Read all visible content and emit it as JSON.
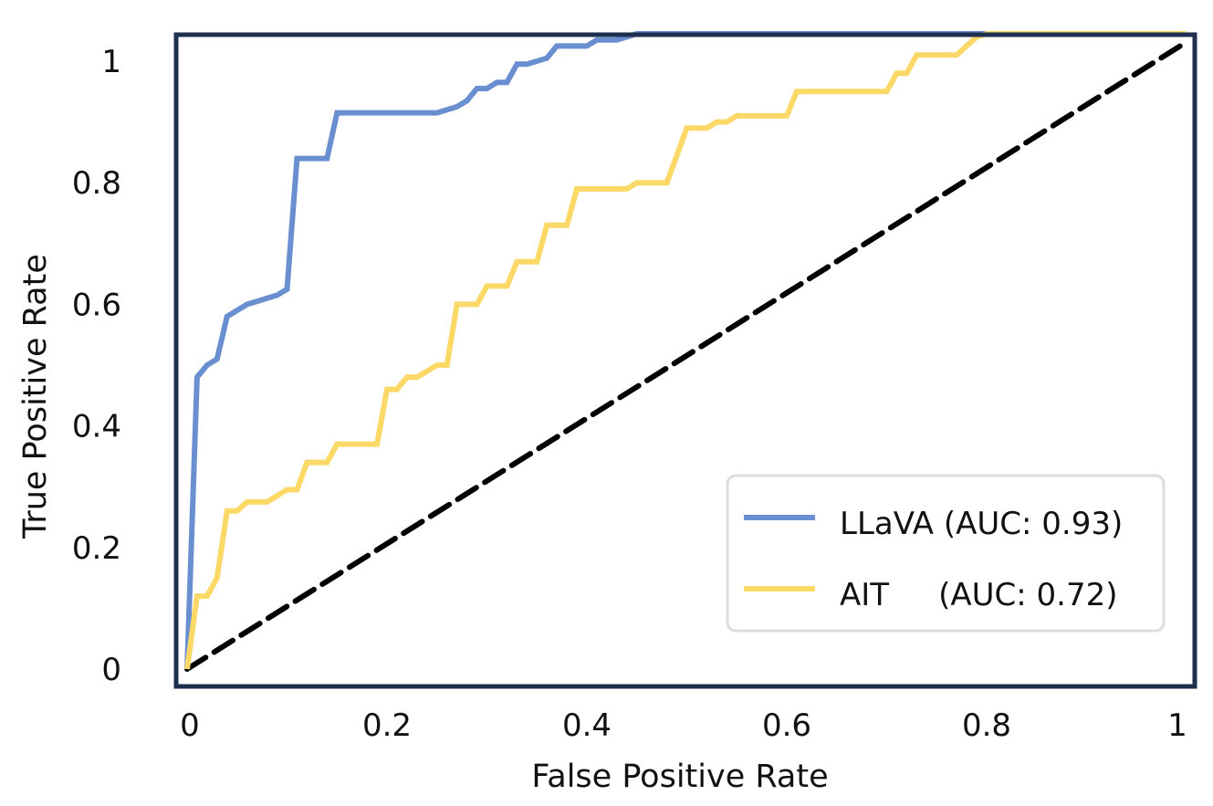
{
  "chart_data": {
    "type": "line",
    "title": "",
    "xlabel": "False Positive Rate",
    "ylabel": "True Positive Rate",
    "xlim": [
      0,
      1
    ],
    "ylim": [
      0,
      1
    ],
    "x_ticks": [
      0,
      0.2,
      0.4,
      0.6,
      0.8,
      1
    ],
    "x_tick_labels": [
      "0",
      "0.2",
      "0.4",
      "0.6",
      "0.8",
      "1"
    ],
    "y_ticks": [
      0,
      0.2,
      0.4,
      0.6,
      0.8,
      1
    ],
    "y_tick_labels": [
      "0",
      "0.2",
      "0.4",
      "0.6",
      "0.8",
      "1"
    ],
    "grid": false,
    "legend_position": "bottom-right",
    "frame_color": "#1f2f4f",
    "diagonal": {
      "style": "dashed",
      "color": "#000000",
      "x": [
        0,
        1
      ],
      "y": [
        0,
        1
      ]
    },
    "series": [
      {
        "name": "LLaVA",
        "legend_label": "LLaVA (AUC: 0.93)",
        "color": "#6a8fd0",
        "x": [
          0,
          0.01,
          0.02,
          0.03,
          0.04,
          0.05,
          0.06,
          0.07,
          0.08,
          0.09,
          0.1,
          0.11,
          0.14,
          0.15,
          0.25,
          0.26,
          0.27,
          0.28,
          0.29,
          0.3,
          0.31,
          0.32,
          0.33,
          0.34,
          0.35,
          0.36,
          0.37,
          0.4,
          0.41,
          0.43,
          0.44,
          0.45,
          0.5,
          0.6,
          0.8,
          1.0
        ],
        "y": [
          0,
          0.48,
          0.5,
          0.51,
          0.58,
          0.59,
          0.6,
          0.605,
          0.61,
          0.615,
          0.625,
          0.84,
          0.84,
          0.915,
          0.915,
          0.92,
          0.925,
          0.935,
          0.955,
          0.955,
          0.965,
          0.965,
          0.995,
          0.995,
          1.0,
          1.005,
          1.025,
          1.025,
          1.035,
          1.035,
          1.04,
          1.045,
          1.045,
          1.045,
          1.045,
          1.045
        ]
      },
      {
        "name": "AIT",
        "legend_label": "AIT     (AUC: 0.72)",
        "color": "#fcd867",
        "x": [
          0,
          0.01,
          0.02,
          0.03,
          0.04,
          0.05,
          0.06,
          0.08,
          0.09,
          0.1,
          0.11,
          0.12,
          0.13,
          0.14,
          0.15,
          0.16,
          0.17,
          0.18,
          0.19,
          0.2,
          0.21,
          0.22,
          0.23,
          0.24,
          0.25,
          0.26,
          0.27,
          0.28,
          0.29,
          0.3,
          0.31,
          0.32,
          0.33,
          0.34,
          0.35,
          0.36,
          0.37,
          0.38,
          0.39,
          0.4,
          0.41,
          0.44,
          0.45,
          0.46,
          0.47,
          0.48,
          0.5,
          0.51,
          0.52,
          0.53,
          0.54,
          0.55,
          0.56,
          0.6,
          0.61,
          0.62,
          0.7,
          0.71,
          0.72,
          0.73,
          0.74,
          0.75,
          0.77,
          0.78,
          0.79,
          0.8,
          1.0
        ],
        "y": [
          0,
          0.12,
          0.12,
          0.15,
          0.26,
          0.26,
          0.275,
          0.275,
          0.285,
          0.295,
          0.295,
          0.34,
          0.34,
          0.34,
          0.37,
          0.37,
          0.37,
          0.37,
          0.37,
          0.46,
          0.46,
          0.48,
          0.48,
          0.49,
          0.5,
          0.5,
          0.6,
          0.6,
          0.6,
          0.63,
          0.63,
          0.63,
          0.67,
          0.67,
          0.67,
          0.73,
          0.73,
          0.73,
          0.79,
          0.79,
          0.79,
          0.79,
          0.8,
          0.8,
          0.8,
          0.8,
          0.89,
          0.89,
          0.89,
          0.9,
          0.9,
          0.91,
          0.91,
          0.91,
          0.95,
          0.95,
          0.95,
          0.98,
          0.98,
          1.01,
          1.01,
          1.01,
          1.01,
          1.025,
          1.04,
          1.045,
          1.045
        ]
      }
    ]
  }
}
